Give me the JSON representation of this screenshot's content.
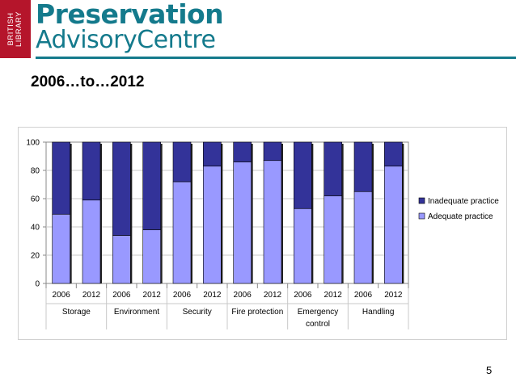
{
  "logo": {
    "box_text": [
      "BRITISH",
      "LIBRARY"
    ],
    "line1": "Preservation",
    "line2": "AdvisoryCentre"
  },
  "slide": {
    "title": "2006…to…2012",
    "page_number": "5"
  },
  "colors": {
    "brand": "#147a8c",
    "logo_box": "#b5152b",
    "inadequate": "#333399",
    "adequate": "#9999ff"
  },
  "chart_data": {
    "type": "bar",
    "stacked": true,
    "categories": [
      "2006",
      "2012",
      "2006",
      "2012",
      "2006",
      "2012",
      "2006",
      "2012",
      "2006",
      "2012",
      "2006",
      "2012"
    ],
    "groups": [
      "Storage",
      "Environment",
      "Security",
      "Fire protection",
      "Emergency control",
      "Handling"
    ],
    "series": [
      {
        "name": "Inadequate practice",
        "values": [
          51,
          41,
          66,
          62,
          28,
          17,
          14,
          13,
          47,
          38,
          35,
          17
        ]
      },
      {
        "name": "Adequate practice",
        "values": [
          49,
          59,
          34,
          38,
          72,
          83,
          86,
          87,
          53,
          62,
          65,
          83
        ]
      }
    ],
    "y_ticks": [
      "0",
      "20",
      "40",
      "60",
      "80",
      "100"
    ],
    "ylim": [
      0,
      100
    ],
    "grid": true,
    "legend_position": "right"
  }
}
